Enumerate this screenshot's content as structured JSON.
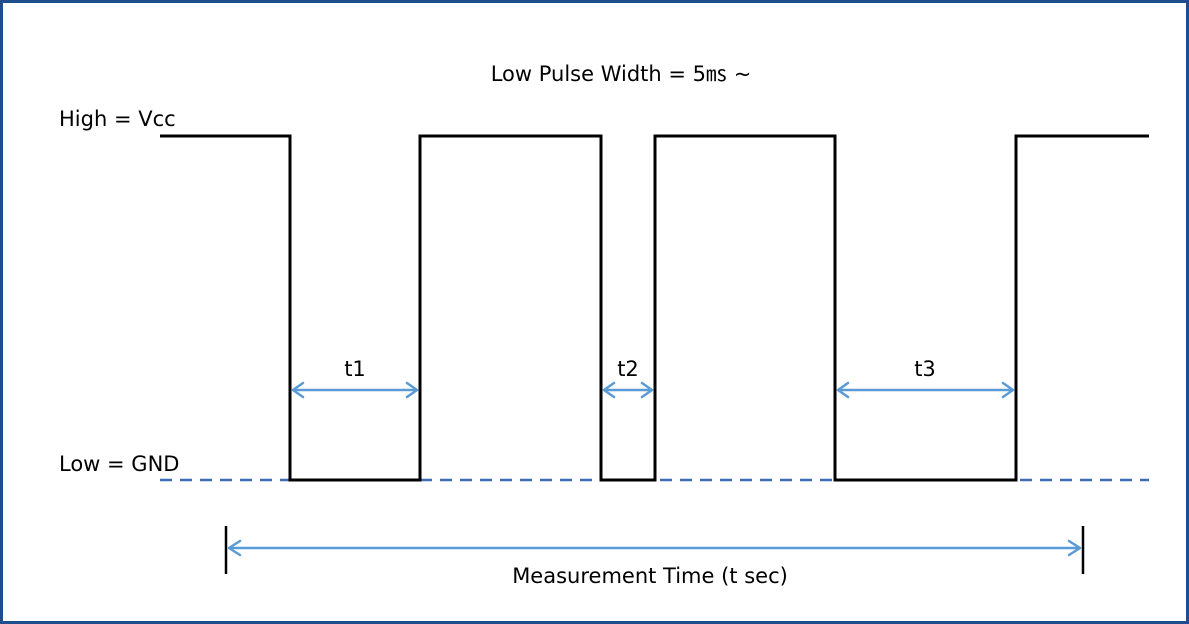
{
  "diagram": {
    "title": "Low Pulse Width = 5㎳ ~",
    "high_label": "High = Vcc",
    "low_label": "Low = GND",
    "intervals": [
      {
        "label": "t1"
      },
      {
        "label": "t2"
      },
      {
        "label": "t3"
      }
    ],
    "measurement_label": "Measurement Time (t sec)"
  },
  "colors": {
    "frame_border": "#1f4e8f",
    "signal": "#000000",
    "gnd_dash": "#3f6db5",
    "arrow": "#5b9bd5"
  }
}
